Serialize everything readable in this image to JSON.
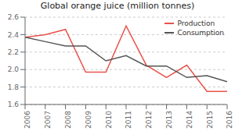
{
  "chart_data": {
    "type": "line",
    "title": "Global orange juice (million tonnes)",
    "x": [
      2006,
      2007,
      2008,
      2009,
      2010,
      2011,
      2012,
      2013,
      2014,
      2015,
      2016
    ],
    "series": [
      {
        "name": "Production",
        "color": "#e8534a",
        "values": [
          2.37,
          2.4,
          2.46,
          1.97,
          1.97,
          2.5,
          2.05,
          1.91,
          2.05,
          1.75,
          1.75
        ]
      },
      {
        "name": "Consumption",
        "color": "#555555",
        "values": [
          2.37,
          2.32,
          2.27,
          2.27,
          2.1,
          2.16,
          2.04,
          2.04,
          1.91,
          1.93,
          1.86
        ]
      }
    ],
    "xlim": [
      2006,
      2016
    ],
    "xticks": [
      2006,
      2007,
      2008,
      2009,
      2010,
      2011,
      2012,
      2013,
      2014,
      2015,
      2016
    ],
    "ylim": [
      1.6,
      2.6
    ],
    "yticks": [
      1.6,
      1.8,
      {
        "value": 2,
        "label": "2.0"
      },
      2.2,
      2.4,
      2.6
    ],
    "grid": true,
    "legend": "upper right"
  }
}
